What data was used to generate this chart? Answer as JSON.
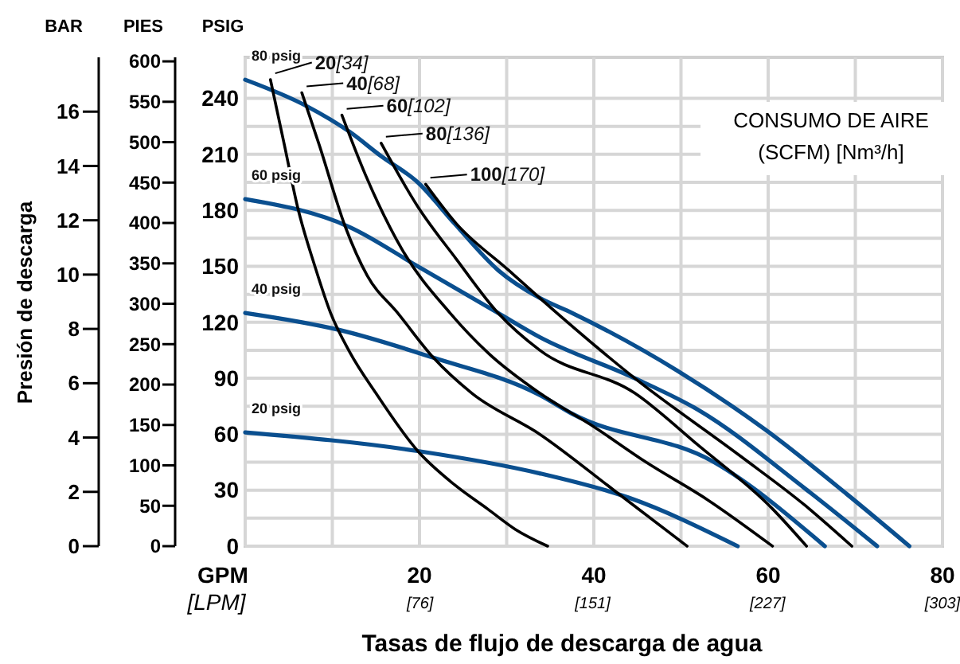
{
  "chart_data": {
    "type": "line",
    "xlabel": "Tasas de flujo de descarga de agua",
    "ylabel": "PSIG",
    "y2label": "PIES",
    "y3label": "Presión de descarga",
    "x2label": "[LPM]",
    "annotations": [
      "BAR",
      "GPM",
      "CONSUMO DE AIRE\n(SCFM) [Nm³/h]"
    ],
    "legend": "top left",
    "xlim": [
      0,
      80
    ],
    "xticks": [
      {
        "value": 0,
        "label": null
      },
      {
        "value": 10,
        "label": null
      },
      20,
      {
        "value": 30,
        "label": null
      },
      40,
      {
        "value": 50,
        "label": null
      },
      60,
      {
        "value": 70,
        "label": null
      },
      80
    ],
    "x2lim": [
      0,
      303
    ],
    "x2ticks": [
      {
        "value": 76,
        "label": "[76]"
      },
      {
        "value": 151,
        "label": "[151]"
      },
      {
        "value": 227,
        "label": "[227]"
      },
      {
        "value": 303,
        "label": "[303]"
      }
    ],
    "ylim": [
      0,
      262
    ],
    "yticks": [
      0,
      {
        "value": 15,
        "label": null
      },
      30,
      {
        "value": 45,
        "label": null
      },
      60,
      {
        "value": 75,
        "label": null
      },
      90,
      {
        "value": 105,
        "label": null
      },
      120,
      {
        "value": 135,
        "label": null
      },
      150,
      {
        "value": 165,
        "label": null
      },
      180,
      {
        "value": 195,
        "label": null
      },
      210,
      {
        "value": 225,
        "label": null
      },
      240
    ],
    "y2lim": [
      0,
      605
    ],
    "y2ticks": [
      0,
      50,
      100,
      150,
      200,
      250,
      300,
      350,
      400,
      450,
      500,
      550,
      600
    ],
    "y3lim": [
      0,
      18
    ],
    "y3ticks": [
      0,
      2,
      4,
      6,
      8,
      10,
      12,
      14,
      16
    ],
    "grid": true,
    "line_style": "solid",
    "series": [
      {
        "name": "80 psig",
        "color": "#0a4f8f",
        "x": [
          0,
          7,
          12,
          15.6,
          19.8,
          24,
          29,
          33.8,
          37.5,
          49.6,
          59.8,
          69,
          76.2
        ],
        "values": [
          250,
          236,
          222,
          209,
          195,
          173,
          148,
          133,
          125,
          94,
          62,
          28,
          0
        ]
      },
      {
        "name": "60 psig",
        "color": "#0a4f8f",
        "x": [
          0,
          12,
          19.8,
          29,
          33.8,
          44.7,
          52,
          64.2,
          72.5
        ],
        "values": [
          186,
          171,
          150,
          125,
          112,
          90,
          73,
          31,
          0
        ]
      },
      {
        "name": "40 psig",
        "color": "#0a4f8f",
        "x": [
          0,
          10.7,
          21.6,
          33.8,
          37.5,
          53.8,
          66.5
        ],
        "values": [
          125,
          116,
          101,
          81,
          71,
          45,
          0
        ]
      },
      {
        "name": "20 psig",
        "color": "#0a4f8f",
        "x": [
          0,
          19.8,
          33.8,
          44,
          56.5
        ],
        "values": [
          61,
          51,
          39,
          26,
          0
        ]
      },
      {
        "name": "20[34]",
        "color": "#000000",
        "x": [
          2.9,
          4.5,
          6,
          8,
          9.8,
          12,
          15,
          19.8,
          24,
          27.8,
          31,
          34.7
        ],
        "values": [
          250,
          215,
          182,
          150,
          125,
          104,
          82,
          51,
          33,
          20,
          9,
          0
        ]
      },
      {
        "name": "40[68]",
        "color": "#000000",
        "x": [
          6.5,
          8.5,
          11.5,
          14,
          17.5,
          21.6,
          26,
          33.8,
          42.3,
          50.7
        ],
        "values": [
          243,
          215,
          171,
          145,
          125,
          101,
          82,
          60,
          30,
          0
        ]
      },
      {
        "name": "60[102]",
        "color": "#000000",
        "x": [
          11.1,
          13.8,
          18,
          23.5,
          28,
          33.8,
          40,
          46,
          53,
          60.5
        ],
        "values": [
          231,
          199,
          159,
          125,
          103,
          82,
          64,
          45,
          25,
          0
        ]
      },
      {
        "name": "80[136]",
        "color": "#000000",
        "x": [
          15.6,
          19.8,
          24.2,
          29,
          33.8,
          44.7,
          52,
          60.5,
          64.4
        ],
        "values": [
          216,
          182,
          154,
          125,
          105,
          82,
          54,
          20,
          0
        ]
      },
      {
        "name": "100[170]",
        "color": "#000000",
        "x": [
          20.7,
          24.2,
          30.2,
          33.8,
          44.7,
          56.9,
          64.2,
          69.6
        ],
        "values": [
          194,
          173,
          148,
          133,
          90,
          48,
          22,
          0
        ]
      }
    ]
  }
}
